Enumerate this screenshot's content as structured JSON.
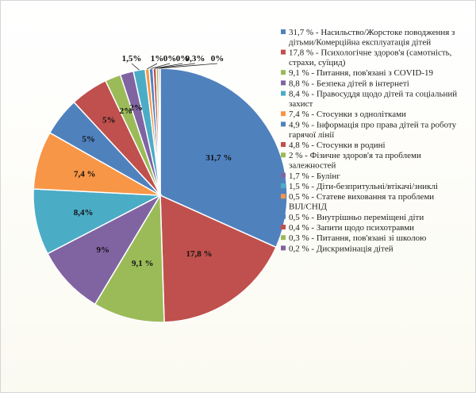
{
  "chart_data": {
    "type": "pie",
    "slices": [
      {
        "label": "31,7 % - Насильство/Жорстоке поводження з дітьми/Комерційна експлуатація дітей",
        "value": 31.7,
        "data_label": "31,7 %",
        "color": "#4F81BD"
      },
      {
        "label": "17,8 % - Психологічне здоров'я (самотність, страхи, суїцид)",
        "value": 17.8,
        "data_label": "17,8 %",
        "color": "#C0504D"
      },
      {
        "label": "9,1 % - Питання, пов'язані з COVID-19",
        "value": 9.1,
        "data_label": "9,1 %",
        "color": "#9BBB59"
      },
      {
        "label": "8,8 % - Безпека дітей в інтернеті",
        "value": 8.8,
        "data_label": "9%",
        "color": "#8064A2"
      },
      {
        "label": "8,4 % - Правосуддя щодо дітей та соціальний захист",
        "value": 8.4,
        "data_label": "8,4%",
        "color": "#4BACC6"
      },
      {
        "label": "7,4 % - Стосунки з однолітками",
        "value": 7.4,
        "data_label": "7,4 %",
        "color": "#F79646"
      },
      {
        "label": "4,9 % - Інформація про права дітей та роботу гарячої лінії",
        "value": 4.9,
        "data_label": "5%",
        "color": "#4F81BD"
      },
      {
        "label": "4,8 % - Стосунки в родині",
        "value": 4.8,
        "data_label": "5%",
        "color": "#C0504D"
      },
      {
        "label": "2 % - Фізичне здоров'я та проблеми залежностей",
        "value": 2.0,
        "data_label": "2%",
        "color": "#9BBB59"
      },
      {
        "label": "1,7 % - Булінг",
        "value": 1.7,
        "data_label": "2%",
        "color": "#8064A2"
      },
      {
        "label": "1,5 % - Діти-безпритульні/втікачі/зниклі",
        "value": 1.5,
        "data_label": "1,5%",
        "color": "#4BACC6"
      },
      {
        "label": "0,5 % - Статеве виховання та проблеми ВІЛ/СНІД",
        "value": 0.5,
        "data_label": "1%",
        "color": "#F79646"
      },
      {
        "label": "0,5 % - Внутрішньо переміщені діти",
        "value": 0.5,
        "data_label": "0%",
        "color": "#4F81BD"
      },
      {
        "label": "0,4 % - Запити щодо психотравми",
        "value": 0.4,
        "data_label": "0%",
        "color": "#C0504D"
      },
      {
        "label": "0,3 % - Питання, пов'язані зі школою",
        "value": 0.3,
        "data_label": "0,3%",
        "color": "#9BBB59"
      },
      {
        "label": "0,2 % - Дискримінація дітей",
        "value": 0.2,
        "data_label": "0%",
        "color": "#8064A2"
      }
    ],
    "legend_position": "right"
  }
}
